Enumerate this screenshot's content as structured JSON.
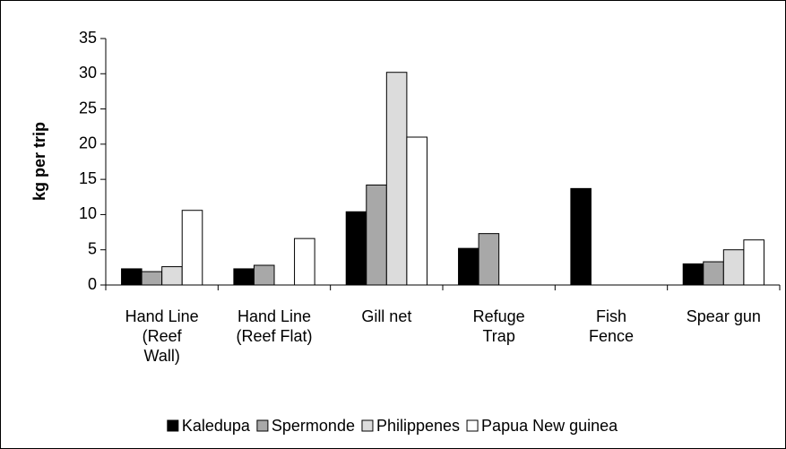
{
  "chart_data": {
    "type": "bar",
    "ylabel": "kg per trip",
    "categories": [
      "Hand Line\n(Reef\nWall)",
      "Hand Line\n(Reef Flat)",
      "Gill net",
      "Refuge\nTrap",
      "Fish\nFence",
      "Spear gun"
    ],
    "series": [
      {
        "name": "Kaledupa",
        "color": "#000000",
        "values": [
          2.3,
          2.3,
          10.4,
          5.2,
          13.7,
          3.0
        ]
      },
      {
        "name": "Spermonde",
        "color": "#a8a8a8",
        "values": [
          1.9,
          2.8,
          14.2,
          7.3,
          null,
          3.3
        ]
      },
      {
        "name": "Philippenes",
        "color": "#dcdcdc",
        "values": [
          2.6,
          null,
          30.2,
          null,
          null,
          5.0
        ]
      },
      {
        "name": "Papua New guinea",
        "color": "#ffffff",
        "values": [
          10.6,
          6.6,
          21.0,
          null,
          null,
          6.4
        ]
      }
    ],
    "ylim": [
      0,
      35
    ],
    "yticks": [
      0,
      5,
      10,
      15,
      20,
      25,
      30,
      35
    ],
    "grid": false,
    "legend": "bottom"
  }
}
